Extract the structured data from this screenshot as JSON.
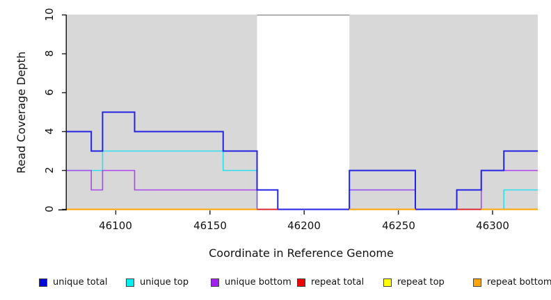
{
  "chart_data": {
    "type": "line",
    "line_style": "step",
    "title": "",
    "xlabel": "Coordinate in Reference Genome",
    "ylabel": "Read Coverage Depth",
    "xlim": [
      46074,
      46324
    ],
    "ylim": [
      0,
      10
    ],
    "grid": false,
    "x_tick_values": [
      46100,
      46150,
      46200,
      46250,
      46300
    ],
    "x_tick_labels": [
      "46100",
      "46150",
      "46200",
      "46250",
      "46300"
    ],
    "y_tick_values": [
      0,
      2,
      4,
      6,
      8,
      10
    ],
    "y_tick_labels": [
      "0",
      "2",
      "4",
      "6",
      "8",
      "10"
    ],
    "background": {
      "shade_color": "#d8d8d8",
      "shaded_regions": [
        [
          46074,
          46175
        ],
        [
          46224,
          46324
        ]
      ],
      "unshaded_gap": [
        46175,
        46224
      ],
      "gap_top_border_color": "#8f8f8f"
    },
    "axis_color": "#1a1a1a",
    "draw_order": [
      "unique top",
      "unique bottom",
      "unique total",
      "repeat total",
      "repeat top",
      "repeat bottom"
    ],
    "series": [
      {
        "name": "unique total",
        "color": "#2222e2",
        "width": 2,
        "steps": [
          [
            46074,
            4
          ],
          [
            46087,
            3
          ],
          [
            46093,
            5
          ],
          [
            46110,
            4
          ],
          [
            46157,
            3
          ],
          [
            46175,
            1
          ],
          [
            46186,
            0
          ],
          [
            46224,
            2
          ],
          [
            46259,
            0
          ],
          [
            46281,
            1
          ],
          [
            46294,
            2
          ],
          [
            46306,
            3
          ]
        ]
      },
      {
        "name": "unique top",
        "color": "#2cdfe8",
        "width": 1.6,
        "steps": [
          [
            46074,
            2
          ],
          [
            46093,
            3
          ],
          [
            46157,
            2
          ],
          [
            46175,
            0
          ],
          [
            46224,
            1
          ],
          [
            46259,
            0
          ],
          [
            46306,
            1
          ]
        ]
      },
      {
        "name": "unique bottom",
        "color": "#a845ee",
        "width": 1.6,
        "steps": [
          [
            46074,
            2
          ],
          [
            46087,
            1
          ],
          [
            46093,
            2
          ],
          [
            46110,
            1
          ],
          [
            46175,
            0
          ],
          [
            46224,
            1
          ],
          [
            46259,
            0
          ],
          [
            46294,
            2
          ]
        ]
      },
      {
        "name": "repeat total",
        "color": "#e01c1c",
        "width": 1.8,
        "segments": [
          [
            46175,
            46186,
            0
          ],
          [
            46281,
            46294,
            0
          ]
        ]
      },
      {
        "name": "repeat top",
        "color": "#ffff00",
        "width": 1.8,
        "segments": [
          [
            46074,
            46175,
            0
          ],
          [
            46224,
            46259,
            0
          ],
          [
            46294,
            46324,
            0
          ]
        ]
      },
      {
        "name": "repeat bottom",
        "color": "#ffa500",
        "width": 2,
        "segments": [
          [
            46074,
            46175,
            0
          ],
          [
            46224,
            46259,
            0
          ],
          [
            46294,
            46324,
            0
          ]
        ]
      }
    ]
  },
  "legend": {
    "items": [
      {
        "label": "unique total",
        "color": "#0008d8"
      },
      {
        "label": "unique top",
        "color": "#00eeee"
      },
      {
        "label": "unique bottom",
        "color": "#a020f0"
      },
      {
        "label": "repeat total",
        "color": "#ee0000"
      },
      {
        "label": "repeat top",
        "color": "#ffff00"
      },
      {
        "label": "repeat bottom",
        "color": "#ffa500"
      }
    ]
  }
}
